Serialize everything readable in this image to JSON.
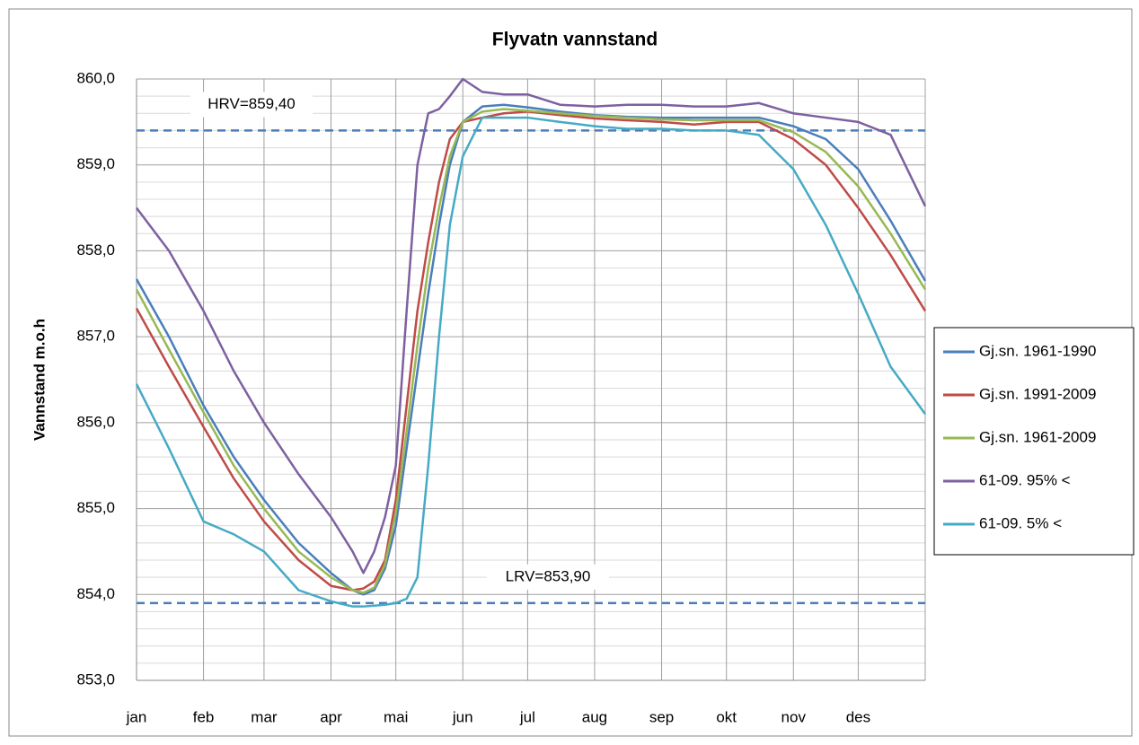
{
  "chart_data": {
    "type": "line",
    "title": "Flyvatn vannstand",
    "y_label": "Vannstand m.o.h",
    "x": [
      0,
      15,
      31,
      45,
      59,
      75,
      90,
      100,
      105,
      110,
      115,
      120,
      125,
      130,
      135,
      140,
      145,
      151,
      160,
      170,
      181,
      196,
      212,
      227,
      243,
      258,
      273,
      288,
      304,
      319,
      334,
      349,
      365
    ],
    "xlim": [
      0,
      365
    ],
    "xticks": [
      {
        "value": 0,
        "label": "jan"
      },
      {
        "value": 31,
        "label": "feb"
      },
      {
        "value": 59,
        "label": "mar"
      },
      {
        "value": 90,
        "label": "apr"
      },
      {
        "value": 120,
        "label": "mai"
      },
      {
        "value": 151,
        "label": "jun"
      },
      {
        "value": 181,
        "label": "jul"
      },
      {
        "value": 212,
        "label": "aug"
      },
      {
        "value": 243,
        "label": "sep"
      },
      {
        "value": 273,
        "label": "okt"
      },
      {
        "value": 304,
        "label": "nov"
      },
      {
        "value": 334,
        "label": "des"
      }
    ],
    "ylim": [
      853,
      860
    ],
    "yticks": [
      {
        "value": 853,
        "label": "853,0"
      },
      {
        "value": 854,
        "label": "854,0"
      },
      {
        "value": 855,
        "label": "855,0"
      },
      {
        "value": 856,
        "label": "856,0"
      },
      {
        "value": 857,
        "label": "857,0"
      },
      {
        "value": 858,
        "label": "858,0"
      },
      {
        "value": 859,
        "label": "859,0"
      },
      {
        "value": 860,
        "label": "860,0"
      }
    ],
    "yminor": [
      853.2,
      853.4,
      853.6,
      853.8,
      854.2,
      854.4,
      854.6,
      854.8,
      855.2,
      855.4,
      855.6,
      855.8,
      856.2,
      856.4,
      856.6,
      856.8,
      857.2,
      857.4,
      857.6,
      857.8,
      858.2,
      858.4,
      858.6,
      858.8,
      859.2,
      859.4,
      859.6,
      859.8
    ],
    "grid": true,
    "legend": "right",
    "reference_lines": [
      {
        "value": 859.4,
        "label": "HRV=859,40",
        "color": "#4a7ebb"
      },
      {
        "value": 853.9,
        "label": "LRV=853,90",
        "color": "#4a7ebb"
      }
    ],
    "series": [
      {
        "name": "Gj.sn. 1961-1990",
        "color": "#4a7ebb",
        "values": [
          857.67,
          857.0,
          856.2,
          855.6,
          855.1,
          854.6,
          854.25,
          854.05,
          854.0,
          854.05,
          854.3,
          854.8,
          855.7,
          856.6,
          857.5,
          858.3,
          859.0,
          859.5,
          859.68,
          859.7,
          859.67,
          859.62,
          859.58,
          859.56,
          859.55,
          859.55,
          859.55,
          859.55,
          859.45,
          859.3,
          858.95,
          858.35,
          857.65
        ]
      },
      {
        "name": "Gj.sn. 1991-2009",
        "color": "#be4b48",
        "values": [
          857.33,
          856.65,
          855.95,
          855.35,
          854.85,
          854.4,
          854.1,
          854.05,
          854.07,
          854.15,
          854.4,
          855.1,
          856.2,
          857.3,
          858.1,
          858.8,
          859.3,
          859.5,
          859.55,
          859.6,
          859.62,
          859.58,
          859.54,
          859.52,
          859.5,
          859.47,
          859.5,
          859.5,
          859.3,
          859.0,
          858.5,
          857.95,
          857.3
        ]
      },
      {
        "name": "Gj.sn. 1961-2009",
        "color": "#98b954",
        "values": [
          857.55,
          856.85,
          856.12,
          855.5,
          855.0,
          854.5,
          854.2,
          854.05,
          854.02,
          854.08,
          854.35,
          854.95,
          855.9,
          856.9,
          857.8,
          858.5,
          859.1,
          859.5,
          859.62,
          859.65,
          859.63,
          859.6,
          859.57,
          859.55,
          859.53,
          859.52,
          859.52,
          859.52,
          859.38,
          859.15,
          858.75,
          858.2,
          857.55
        ]
      },
      {
        "name": "61-09. 95% <",
        "color": "#7d60a0",
        "values": [
          858.5,
          858.0,
          857.3,
          856.6,
          856.0,
          855.4,
          854.9,
          854.5,
          854.25,
          854.5,
          854.9,
          855.5,
          857.3,
          859.0,
          859.6,
          859.65,
          859.8,
          860.0,
          859.85,
          859.82,
          859.82,
          859.7,
          859.68,
          859.7,
          859.7,
          859.68,
          859.68,
          859.72,
          859.6,
          859.55,
          859.5,
          859.35,
          858.52
        ]
      },
      {
        "name": "61-09. 5% <",
        "color": "#46aac5",
        "values": [
          856.45,
          855.7,
          854.85,
          854.7,
          854.5,
          854.05,
          853.92,
          853.86,
          853.86,
          853.87,
          853.88,
          853.9,
          853.95,
          854.2,
          855.5,
          857.0,
          858.3,
          859.1,
          859.55,
          859.55,
          859.55,
          859.5,
          859.45,
          859.42,
          859.42,
          859.4,
          859.4,
          859.35,
          858.95,
          858.3,
          857.5,
          856.65,
          856.1
        ]
      }
    ]
  }
}
